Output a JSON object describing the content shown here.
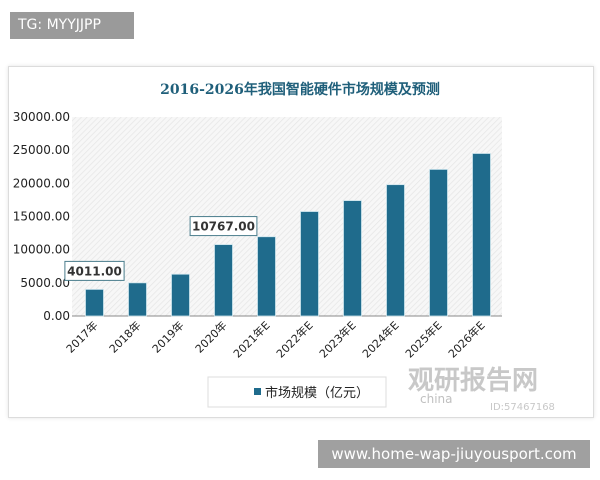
{
  "banner_top": "TG: MYYJJPP",
  "banner_bottom": "www.home-wap-jiuyousport.com",
  "watermark": {
    "name": "观研报告网",
    "sub": "china",
    "id": "ID:57467168"
  },
  "colors": {
    "bar": "#1f6b8c",
    "title": "#1f5f7a"
  },
  "chart_data": {
    "type": "bar",
    "title": "2016-2026年我国智能硬件市场规模及预测",
    "categories": [
      "2017年",
      "2018年",
      "2019年",
      "2020年",
      "2021年E",
      "2022年E",
      "2023年E",
      "2024年E",
      "2025年E",
      "2026年E"
    ],
    "series": [
      {
        "name": "市场规模（亿元）",
        "values": [
          4011,
          5000,
          6300,
          10767,
          11950,
          15750,
          17400,
          19800,
          22100,
          24500
        ]
      }
    ],
    "data_labels": [
      {
        "index": 0,
        "text": "4011.00"
      },
      {
        "index": 3,
        "text": "10767.00"
      }
    ],
    "yticks": [
      "0.00",
      "5000.00",
      "10000.00",
      "15000.00",
      "20000.00",
      "25000.00",
      "30000.00"
    ],
    "ylim": [
      0,
      30000
    ],
    "grid": false,
    "legend": "bottom"
  }
}
